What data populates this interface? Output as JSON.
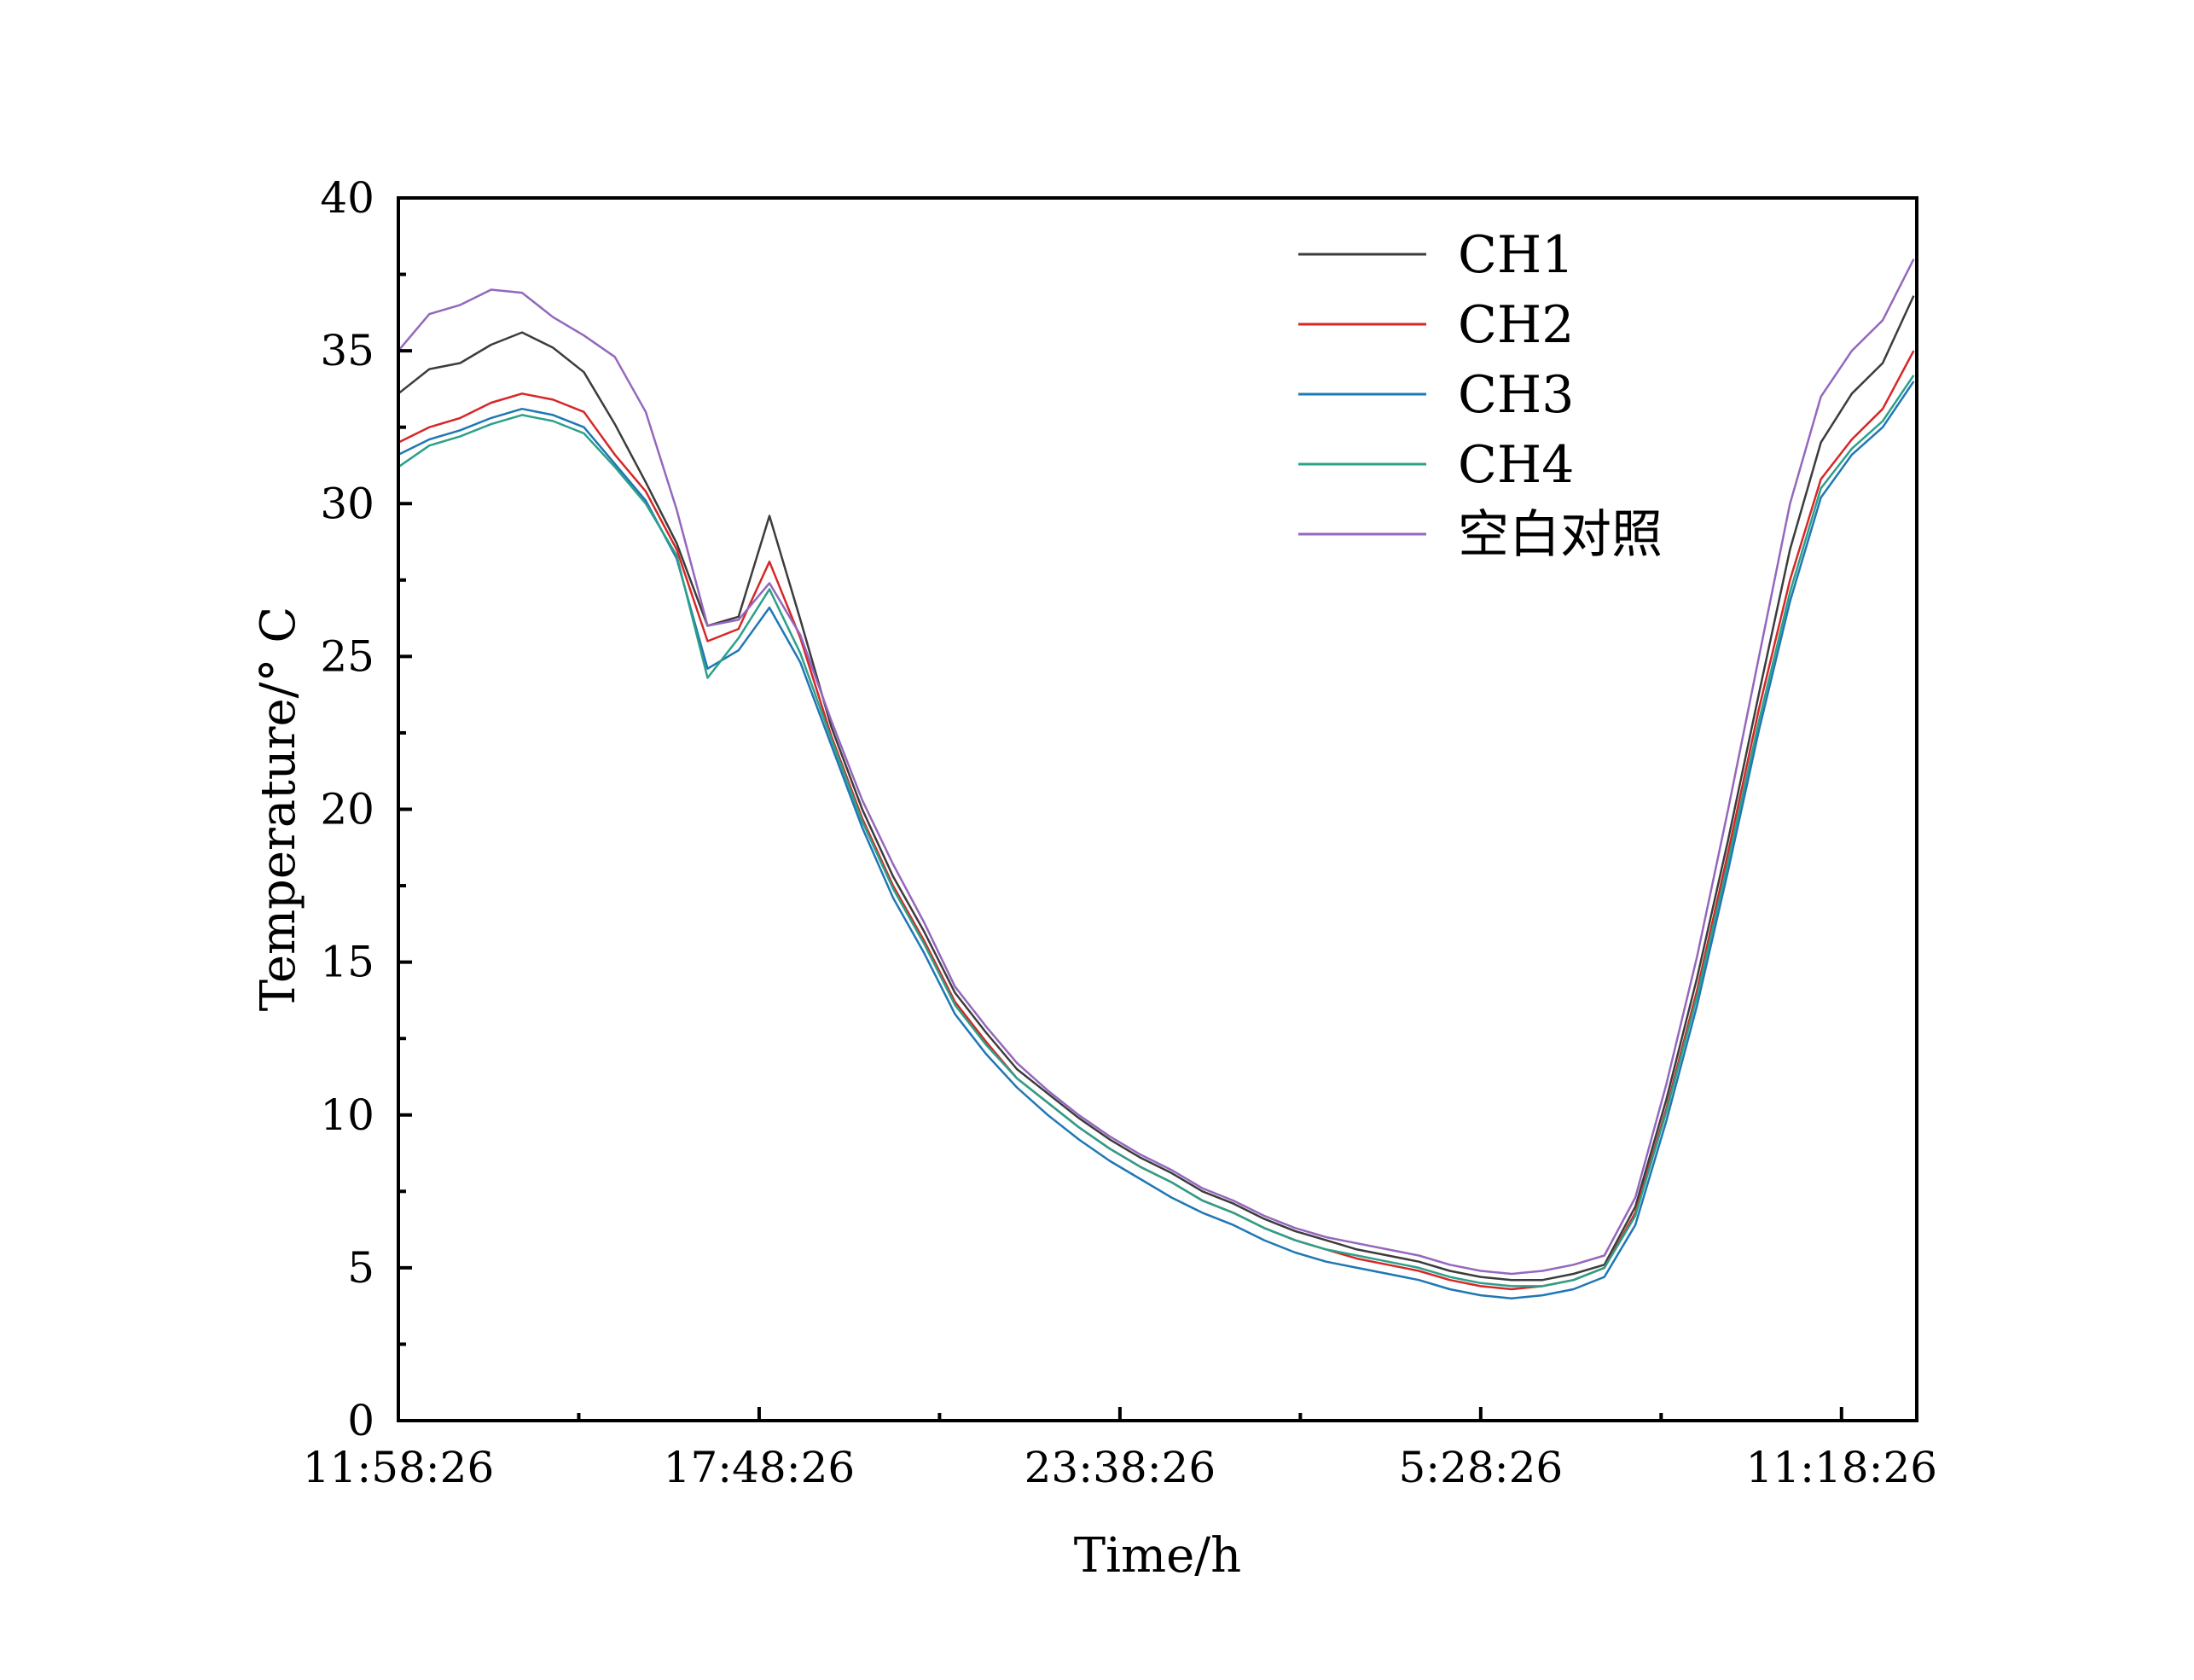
{
  "chart_data": {
    "type": "line",
    "title": "",
    "xlabel": "Time/h",
    "ylabel": "Temperature/° C",
    "xlim": [
      0,
      24.55
    ],
    "ylim": [
      0,
      40
    ],
    "x_unit": "hours since 11:58:26",
    "xticks": [
      {
        "x": 0,
        "label": "11:58:26"
      },
      {
        "x": 5.8333,
        "label": "17:48:26"
      },
      {
        "x": 11.6667,
        "label": "23:38:26"
      },
      {
        "x": 17.5,
        "label": "5:28:26"
      },
      {
        "x": 23.3333,
        "label": "11:18:26"
      }
    ],
    "yticks": [
      0,
      5,
      10,
      15,
      20,
      25,
      30,
      35,
      40
    ],
    "grid": false,
    "legend_position": "top-right",
    "x": [
      0,
      0.5,
      1,
      1.5,
      2,
      2.5,
      3,
      3.5,
      4,
      4.5,
      5,
      5.5,
      6,
      6.5,
      7,
      7.5,
      8,
      8.5,
      9,
      9.5,
      10,
      10.5,
      11,
      11.5,
      12,
      12.5,
      13,
      13.5,
      14,
      14.5,
      15,
      15.5,
      16,
      16.5,
      17,
      17.5,
      18,
      18.5,
      19,
      19.5,
      20,
      20.5,
      21,
      21.5,
      22,
      22.5,
      23,
      23.5,
      24,
      24.5
    ],
    "series": [
      {
        "name": "CH1",
        "color": "#3c3c3c",
        "values": [
          33.6,
          34.4,
          34.6,
          35.2,
          35.6,
          35.1,
          34.3,
          32.6,
          30.7,
          28.7,
          26.0,
          26.3,
          29.6,
          26.2,
          22.7,
          20.0,
          17.8,
          16.0,
          14.0,
          12.7,
          11.5,
          10.7,
          9.9,
          9.2,
          8.6,
          8.1,
          7.5,
          7.1,
          6.6,
          6.2,
          5.9,
          5.6,
          5.4,
          5.2,
          4.9,
          4.7,
          4.6,
          4.6,
          4.8,
          5.1,
          7.0,
          10.5,
          14.5,
          19.0,
          23.8,
          28.5,
          32.0,
          33.6,
          34.6,
          36.8
        ]
      },
      {
        "name": "CH2",
        "color": "#d62728",
        "values": [
          32.0,
          32.5,
          32.8,
          33.3,
          33.6,
          33.4,
          33.0,
          31.6,
          30.4,
          28.5,
          25.5,
          25.9,
          28.1,
          25.6,
          22.4,
          19.7,
          17.5,
          15.7,
          13.7,
          12.4,
          11.2,
          10.4,
          9.6,
          8.9,
          8.3,
          7.8,
          7.2,
          6.8,
          6.3,
          5.9,
          5.6,
          5.3,
          5.1,
          4.9,
          4.6,
          4.4,
          4.3,
          4.4,
          4.6,
          5.0,
          6.8,
          10.2,
          14.1,
          18.6,
          23.3,
          27.5,
          30.8,
          32.1,
          33.1,
          35.0
        ]
      },
      {
        "name": "CH3",
        "color": "#1f77b4",
        "values": [
          31.6,
          32.1,
          32.4,
          32.8,
          33.1,
          32.9,
          32.5,
          31.3,
          30.1,
          28.2,
          24.6,
          25.2,
          26.6,
          24.8,
          22.1,
          19.4,
          17.1,
          15.3,
          13.3,
          12.0,
          10.9,
          10.0,
          9.2,
          8.5,
          7.9,
          7.3,
          6.8,
          6.4,
          5.9,
          5.5,
          5.2,
          5.0,
          4.8,
          4.6,
          4.3,
          4.1,
          4.0,
          4.1,
          4.3,
          4.7,
          6.4,
          9.8,
          13.6,
          18.0,
          22.6,
          26.8,
          30.2,
          31.6,
          32.5,
          34.0
        ]
      },
      {
        "name": "CH4",
        "color": "#2ca089",
        "values": [
          31.2,
          31.9,
          32.2,
          32.6,
          32.9,
          32.7,
          32.3,
          31.2,
          30.0,
          28.3,
          24.3,
          25.6,
          27.2,
          25.1,
          22.3,
          19.6,
          17.4,
          15.6,
          13.6,
          12.3,
          11.2,
          10.4,
          9.6,
          8.9,
          8.3,
          7.8,
          7.2,
          6.8,
          6.3,
          5.9,
          5.6,
          5.4,
          5.2,
          5.0,
          4.7,
          4.5,
          4.4,
          4.4,
          4.6,
          5.0,
          6.7,
          10.1,
          13.9,
          18.3,
          22.9,
          27.1,
          30.5,
          31.8,
          32.7,
          34.2
        ]
      },
      {
        "name": "空白对照",
        "color": "#9467bd",
        "values": [
          35.0,
          36.2,
          36.5,
          37.0,
          36.9,
          36.1,
          35.5,
          34.8,
          33.0,
          29.8,
          26.0,
          26.2,
          27.4,
          25.7,
          22.9,
          20.3,
          18.2,
          16.3,
          14.2,
          12.9,
          11.7,
          10.8,
          10.0,
          9.3,
          8.7,
          8.2,
          7.6,
          7.2,
          6.7,
          6.3,
          6.0,
          5.8,
          5.6,
          5.4,
          5.1,
          4.9,
          4.8,
          4.9,
          5.1,
          5.4,
          7.3,
          11.0,
          15.2,
          20.0,
          25.0,
          30.0,
          33.5,
          35.0,
          36.0,
          38.0
        ]
      }
    ]
  }
}
